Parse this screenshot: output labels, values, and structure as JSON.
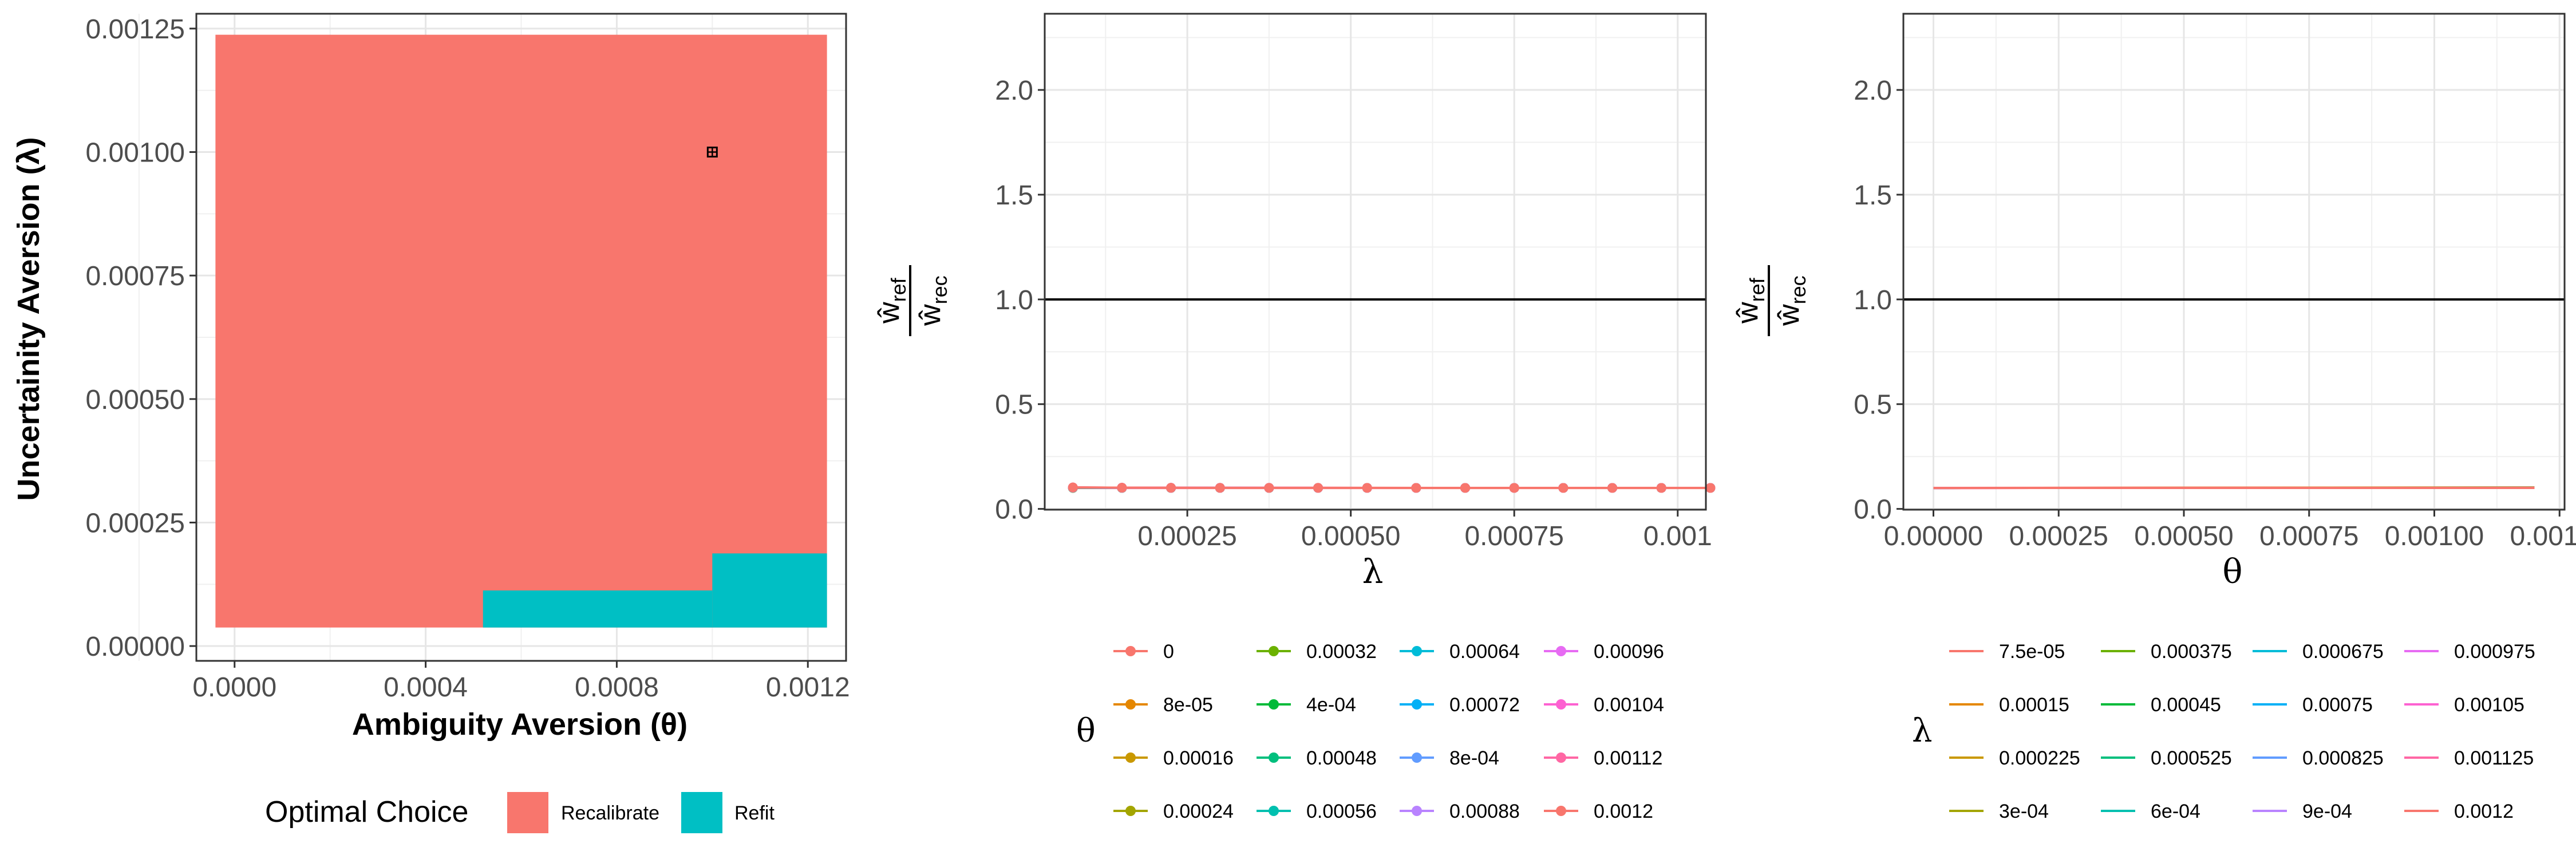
{
  "chart_data": [
    {
      "type": "heatmap",
      "xlabel": "Ambiguity Aversion (θ)",
      "ylabel": "Uncertainity Aversion (λ)",
      "xlim": [
        -8e-05,
        0.00128
      ],
      "ylim": [
        -3e-05,
        0.00128
      ],
      "xticks": [
        0,
        0.0004,
        0.0008,
        0.0012
      ],
      "xtick_labels": [
        "0.0000",
        "0.0004",
        "0.0008",
        "0.0012"
      ],
      "yticks": [
        0,
        0.00025,
        0.0005,
        0.00075,
        0.001,
        0.00125
      ],
      "ytick_labels": [
        "0.00000",
        "0.00025",
        "0.00050",
        "0.00075",
        "0.00100",
        "0.00125"
      ],
      "x_step": 8e-05,
      "y_step": 7.5e-05,
      "theta_values": [
        0,
        8e-05,
        0.00016,
        0.00024,
        0.00032,
        0.0004,
        0.00048,
        0.00056,
        0.00064,
        0.00072,
        0.0008,
        0.00088,
        0.00096,
        0.00104,
        0.00112,
        0.0012
      ],
      "lambda_values": [
        7.5e-05,
        0.00015,
        0.000225,
        0.0003,
        0.000375,
        0.00045,
        0.000525,
        0.0006,
        0.000675,
        0.00075,
        0.000825,
        0.0009,
        0.000975,
        0.00105,
        0.001125,
        0.0012
      ],
      "default_category": "Recalibrate",
      "refit_cells": [
        {
          "theta_min": 0.00056,
          "theta_max": 0.00096,
          "lambda_max": 7.5e-05
        },
        {
          "theta_min": 0.00104,
          "theta_max": 0.0012,
          "lambda_max": 0.00015
        }
      ],
      "marker": {
        "theta": 0.001,
        "lambda": 0.001
      },
      "legend": {
        "title": "Optimal Choice",
        "items": [
          {
            "label": "Recalibrate",
            "color": "#F8766D"
          },
          {
            "label": "Refit",
            "color": "#00BFC4"
          }
        ]
      }
    },
    {
      "type": "line",
      "xlabel": "λ",
      "ylabel": "ŵ_ref / ŵ_rec",
      "xlim": [
        3.19e-05,
        0.0010431
      ],
      "ylim": [
        -0.0037,
        2.3637
      ],
      "xticks": [
        0.00025,
        0.0005,
        0.00075,
        0.001
      ],
      "xtick_labels": [
        "0.00025",
        "0.00050",
        "0.00075",
        "0.001"
      ],
      "yticks": [
        0,
        0.5,
        1,
        1.5,
        2
      ],
      "ytick_labels": [
        "0.0",
        "0.5",
        "1.0",
        "1.5",
        "2.0"
      ],
      "hline": 1.0,
      "x": [
        7.5e-05,
        0.00015,
        0.000225,
        0.0003,
        0.000375,
        0.00045,
        0.000525,
        0.0006,
        0.000675,
        0.00075,
        0.000825,
        0.0009,
        0.000975,
        0.00105
      ],
      "formula": "y = 0.1 + 0.000162 * theta / lambda",
      "legend": {
        "title": "θ",
        "columns": [
          [
            "0",
            "8e-05",
            "0.00016",
            "0.00024"
          ],
          [
            "0.00032",
            "4e-04",
            "0.00048",
            "0.00056"
          ],
          [
            "0.00064",
            "0.00072",
            "8e-04",
            "0.00088"
          ],
          [
            "0.00096",
            "0.00104",
            "0.00112",
            "0.0012"
          ]
        ]
      },
      "series": [
        {
          "name": "0",
          "theta": 0,
          "color": "#F8766D"
        },
        {
          "name": "8e-05",
          "theta": 8e-05,
          "color": "#E58700"
        },
        {
          "name": "0.00016",
          "theta": 0.00016,
          "color": "#C99800"
        },
        {
          "name": "0.00024",
          "theta": 0.00024,
          "color": "#A3A500"
        },
        {
          "name": "0.00032",
          "theta": 0.00032,
          "color": "#6BB100"
        },
        {
          "name": "4e-04",
          "theta": 0.0004,
          "color": "#00BA38"
        },
        {
          "name": "0.00048",
          "theta": 0.00048,
          "color": "#00BF7D"
        },
        {
          "name": "0.00056",
          "theta": 0.00056,
          "color": "#00C0AF"
        },
        {
          "name": "0.00064",
          "theta": 0.00064,
          "color": "#00BCD8"
        },
        {
          "name": "0.00072",
          "theta": 0.00072,
          "color": "#00B0F6"
        },
        {
          "name": "8e-04",
          "theta": 0.0008,
          "color": "#619CFF"
        },
        {
          "name": "0.00088",
          "theta": 0.00088,
          "color": "#B983FF"
        },
        {
          "name": "0.00096",
          "theta": 0.00096,
          "color": "#E76BF3"
        },
        {
          "name": "0.00104",
          "theta": 0.00104,
          "color": "#FD61D1"
        },
        {
          "name": "0.00112",
          "theta": 0.00112,
          "color": "#FF67A4"
        },
        {
          "name": "0.0012",
          "theta": 0.0012,
          "color": "#F8766D"
        }
      ]
    },
    {
      "type": "line",
      "xlabel": "θ",
      "ylabel": "ŵ_ref / ŵ_rec",
      "xlim": [
        -6e-05,
        0.00126
      ],
      "ylim": [
        -0.0037,
        2.3637
      ],
      "xticks": [
        0,
        0.00025,
        0.0005,
        0.00075,
        0.001,
        0.00125
      ],
      "xtick_labels": [
        "0.00000",
        "0.00025",
        "0.00050",
        "0.00075",
        "0.00100",
        "0.00125"
      ],
      "yticks": [
        0,
        0.5,
        1,
        1.5,
        2
      ],
      "ytick_labels": [
        "0.0",
        "0.5",
        "1.0",
        "1.5",
        "2.0"
      ],
      "hline": 1.0,
      "x_range": [
        0,
        0.0012
      ],
      "formula": "y = 0.1 + 0.000162 * theta / lambda",
      "legend": {
        "title": "λ",
        "columns": [
          [
            "7.5e-05",
            "0.00015",
            "0.000225",
            "3e-04"
          ],
          [
            "0.000375",
            "0.00045",
            "0.000525",
            "6e-04"
          ],
          [
            "0.000675",
            "0.00075",
            "0.000825",
            "9e-04"
          ],
          [
            "0.000975",
            "0.00105",
            "0.001125",
            "0.0012"
          ]
        ]
      },
      "series": [
        {
          "name": "7.5e-05",
          "lambda": 7.5e-05,
          "color": "#F8766D"
        },
        {
          "name": "0.00015",
          "lambda": 0.00015,
          "color": "#E58700"
        },
        {
          "name": "0.000225",
          "lambda": 0.000225,
          "color": "#C99800"
        },
        {
          "name": "3e-04",
          "lambda": 0.0003,
          "color": "#A3A500"
        },
        {
          "name": "0.000375",
          "lambda": 0.000375,
          "color": "#6BB100"
        },
        {
          "name": "0.00045",
          "lambda": 0.00045,
          "color": "#00BA38"
        },
        {
          "name": "0.000525",
          "lambda": 0.000525,
          "color": "#00BF7D"
        },
        {
          "name": "6e-04",
          "lambda": 0.0006,
          "color": "#00C0AF"
        },
        {
          "name": "0.000675",
          "lambda": 0.000675,
          "color": "#00BCD8"
        },
        {
          "name": "0.00075",
          "lambda": 0.00075,
          "color": "#00B0F6"
        },
        {
          "name": "0.000825",
          "lambda": 0.000825,
          "color": "#619CFF"
        },
        {
          "name": "9e-04",
          "lambda": 0.0009,
          "color": "#B983FF"
        },
        {
          "name": "0.000975",
          "lambda": 0.000975,
          "color": "#E76BF3"
        },
        {
          "name": "0.00105",
          "lambda": 0.00105,
          "color": "#FD61D1"
        },
        {
          "name": "0.001125",
          "lambda": 0.001125,
          "color": "#FF67A4"
        },
        {
          "name": "0.0012",
          "lambda": 0.0012,
          "color": "#F8766D"
        }
      ]
    }
  ]
}
